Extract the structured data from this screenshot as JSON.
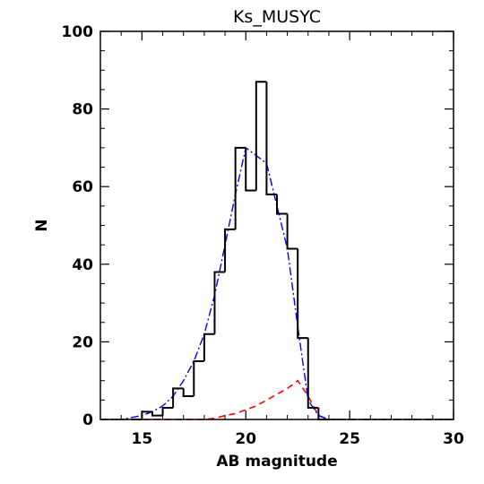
{
  "chart_data": {
    "type": "histogram",
    "title": "Ks_MUSYC",
    "xlabel": "AB magnitude",
    "ylabel": "N",
    "xlim": [
      13,
      30
    ],
    "ylim": [
      0,
      100
    ],
    "xticks": [
      15,
      20,
      25,
      30
    ],
    "yticks": [
      0,
      20,
      40,
      60,
      80,
      100
    ],
    "grid": false,
    "bin_width": 0.5,
    "series": [
      {
        "style": "step",
        "color": "#000000",
        "bins": [
          {
            "x": 14.5,
            "y": 0
          },
          {
            "x": 15.0,
            "y": 2
          },
          {
            "x": 15.5,
            "y": 1
          },
          {
            "x": 16.0,
            "y": 3
          },
          {
            "x": 16.5,
            "y": 8
          },
          {
            "x": 17.0,
            "y": 6
          },
          {
            "x": 17.5,
            "y": 15
          },
          {
            "x": 18.0,
            "y": 22
          },
          {
            "x": 18.5,
            "y": 38
          },
          {
            "x": 19.0,
            "y": 49
          },
          {
            "x": 19.5,
            "y": 70
          },
          {
            "x": 20.0,
            "y": 59
          },
          {
            "x": 20.5,
            "y": 87
          },
          {
            "x": 21.0,
            "y": 58
          },
          {
            "x": 21.5,
            "y": 53
          },
          {
            "x": 22.0,
            "y": 44
          },
          {
            "x": 22.5,
            "y": 21
          },
          {
            "x": 23.0,
            "y": 3
          },
          {
            "x": 23.5,
            "y": 0
          }
        ]
      },
      {
        "style": "dash-dot",
        "color": "#0000ff",
        "x": [
          13.0,
          14.0,
          14.5,
          15.0,
          15.5,
          16.0,
          16.5,
          17.0,
          17.5,
          18.0,
          18.5,
          19.0,
          19.5,
          20.0,
          20.5,
          21.0,
          21.5,
          22.0,
          22.5,
          23.0,
          23.5,
          24.0,
          26.0,
          30.0
        ],
        "y": [
          0,
          0,
          0.5,
          1,
          2,
          3.5,
          6,
          10,
          15,
          22,
          32,
          45,
          58,
          70,
          68,
          66,
          55,
          44,
          24,
          5,
          1,
          0,
          0,
          0
        ]
      },
      {
        "style": "dashed",
        "color": "#ff0000",
        "x": [
          13.0,
          18.0,
          18.5,
          19.0,
          19.5,
          20.0,
          20.5,
          21.0,
          21.5,
          22.0,
          22.5,
          23.0,
          23.5,
          24.0,
          30.0
        ],
        "y": [
          0,
          0,
          0.3,
          1,
          1.5,
          2.5,
          3.5,
          5,
          6.5,
          8,
          10,
          6,
          1,
          0,
          0
        ]
      }
    ]
  }
}
